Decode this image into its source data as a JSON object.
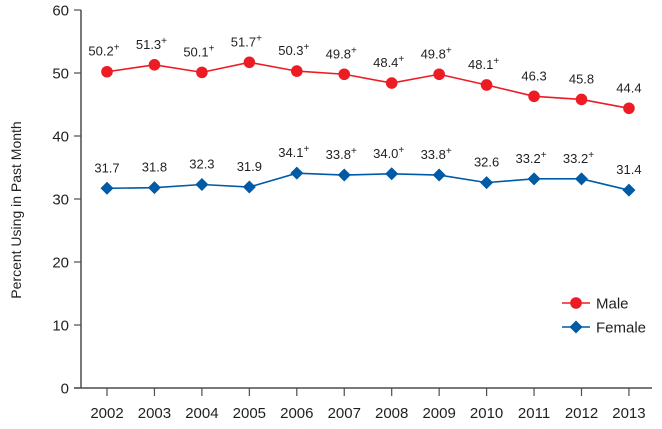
{
  "chart_data": {
    "type": "line",
    "title": "",
    "xlabel": "",
    "ylabel": "Percent Using in Past Month",
    "ylim": [
      0,
      60
    ],
    "yticks": [
      0,
      10,
      20,
      30,
      40,
      50,
      60
    ],
    "grid": false,
    "legend_position": "lower right",
    "categories": [
      "2002",
      "2003",
      "2004",
      "2005",
      "2006",
      "2007",
      "2008",
      "2009",
      "2010",
      "2011",
      "2012",
      "2013"
    ],
    "series": [
      {
        "name": "Male",
        "color": "#ed1c24",
        "marker": "circle",
        "values": [
          50.2,
          51.3,
          50.1,
          51.7,
          50.3,
          49.8,
          48.4,
          49.8,
          48.1,
          46.3,
          45.8,
          44.4
        ],
        "labels": [
          "50.2",
          "51.3",
          "50.1",
          "51.7",
          "50.3",
          "49.8",
          "48.4",
          "49.8",
          "48.1",
          "46.3",
          "45.8",
          "44.4"
        ],
        "significant": [
          true,
          true,
          true,
          true,
          true,
          true,
          true,
          true,
          true,
          false,
          false,
          false
        ]
      },
      {
        "name": "Female",
        "color": "#005ba6",
        "marker": "diamond",
        "values": [
          31.7,
          31.8,
          32.3,
          31.9,
          34.1,
          33.8,
          34.0,
          33.8,
          32.6,
          33.2,
          33.2,
          31.4
        ],
        "labels": [
          "31.7",
          "31.8",
          "32.3",
          "31.9",
          "34.1",
          "33.8",
          "34.0",
          "33.8",
          "32.6",
          "33.2",
          "33.2",
          "31.4"
        ],
        "significant": [
          false,
          false,
          false,
          false,
          true,
          true,
          true,
          true,
          false,
          true,
          true,
          false
        ]
      }
    ],
    "significance_marker": "+"
  }
}
